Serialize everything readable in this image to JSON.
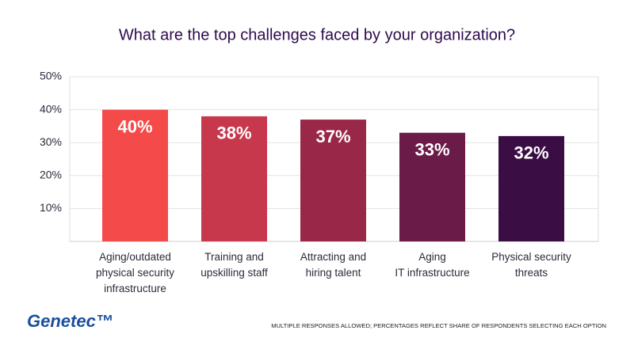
{
  "chart_data": {
    "type": "bar",
    "title": "What are the top challenges faced by your organization?",
    "categories": [
      "Aging/outdated\nphysical security\ninfrastructure",
      "Training and\nupskilling staff",
      "Attracting and\nhiring talent",
      "Aging\nIT infrastructure",
      "Physical security\nthreats"
    ],
    "values": [
      40,
      38,
      37,
      33,
      32
    ],
    "value_labels": [
      "40%",
      "38%",
      "37%",
      "33%",
      "32%"
    ],
    "colors": [
      "#f44b4a",
      "#c7384c",
      "#992848",
      "#6a1b48",
      "#3a0d45"
    ],
    "ylim": [
      0,
      50
    ],
    "yticks": [
      {
        "value": 10,
        "label": "10%"
      },
      {
        "value": 20,
        "label": "20%"
      },
      {
        "value": 30,
        "label": "30%"
      },
      {
        "value": 40,
        "label": "40%"
      },
      {
        "value": 50,
        "label": "50%"
      }
    ],
    "grid": true,
    "footnote": "MULTIPLE RESPONSES ALLOWED; PERCENTAGES REFLECT SHARE OF RESPONDENTS SELECTING EACH OPTION",
    "logo": "Genetec™"
  }
}
